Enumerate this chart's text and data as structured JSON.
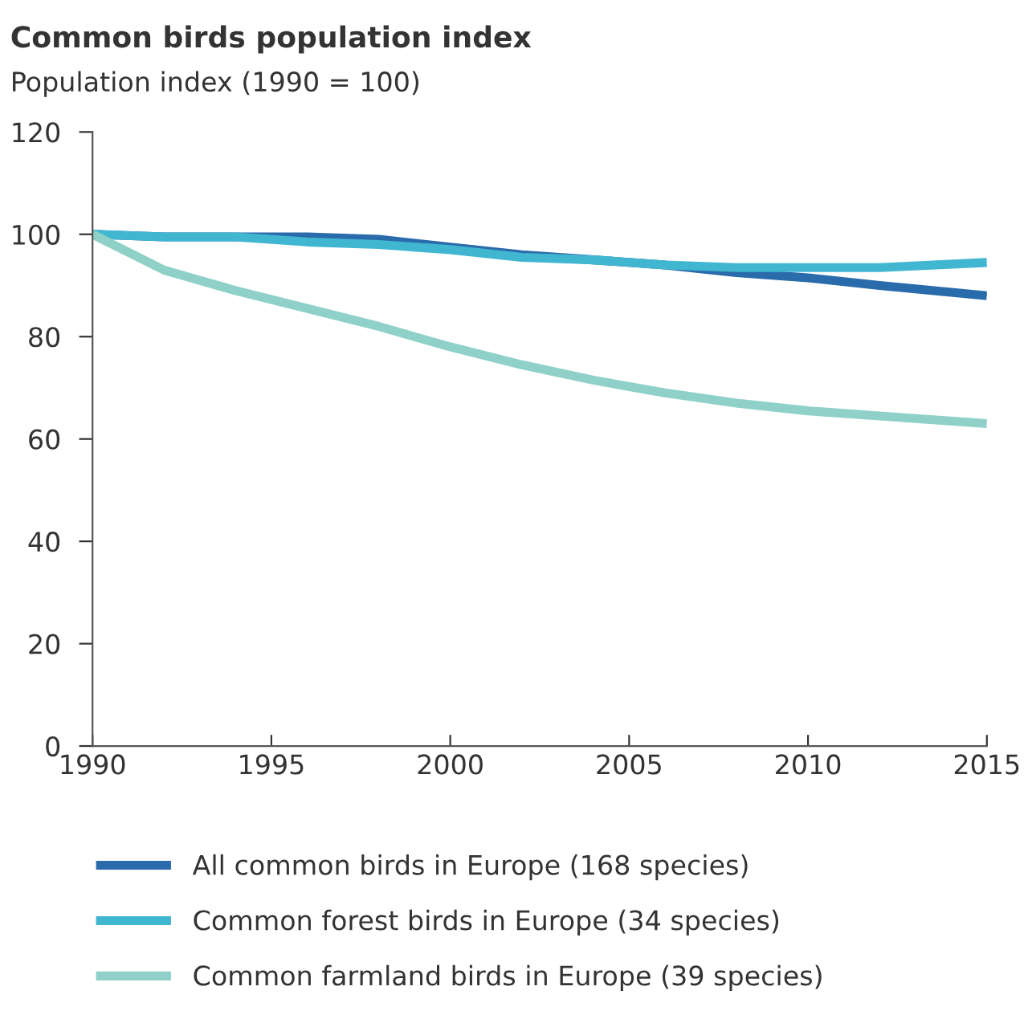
{
  "chart_data": {
    "type": "line",
    "title": "Common birds population index",
    "ylabel": "Population index (1990 = 100)",
    "x": [
      1990,
      1992,
      1994,
      1996,
      1998,
      2000,
      2002,
      2004,
      2006,
      2008,
      2010,
      2012,
      2015
    ],
    "series": [
      {
        "name": "All common birds in Europe (168 species)",
        "color": "#2a6bab",
        "values": [
          100,
          99.5,
          99.5,
          99.5,
          99,
          97.5,
          96,
          95,
          94,
          92.5,
          91.5,
          90,
          88
        ]
      },
      {
        "name": "Common forest birds in Europe (34 species)",
        "color": "#41b6d0",
        "values": [
          100,
          99.5,
          99.5,
          98.5,
          98,
          97,
          95.5,
          95,
          94,
          93.5,
          93.5,
          93.5,
          94.5
        ]
      },
      {
        "name": "Common farmland birds in Europe (39 species)",
        "color": "#8fd1c8",
        "values": [
          100,
          93,
          89,
          85.5,
          82,
          78,
          74.5,
          71.5,
          69,
          67,
          65.5,
          64.5,
          63
        ]
      }
    ],
    "xlim": [
      1990,
      2015
    ],
    "xticks": [
      1990,
      1995,
      2000,
      2005,
      2010,
      2015
    ],
    "ylim": [
      0,
      120
    ],
    "yticks": [
      0,
      20,
      40,
      60,
      80,
      100,
      120
    ],
    "grid": false,
    "legend": "bottom",
    "marker": "none",
    "line_style": "solid"
  }
}
